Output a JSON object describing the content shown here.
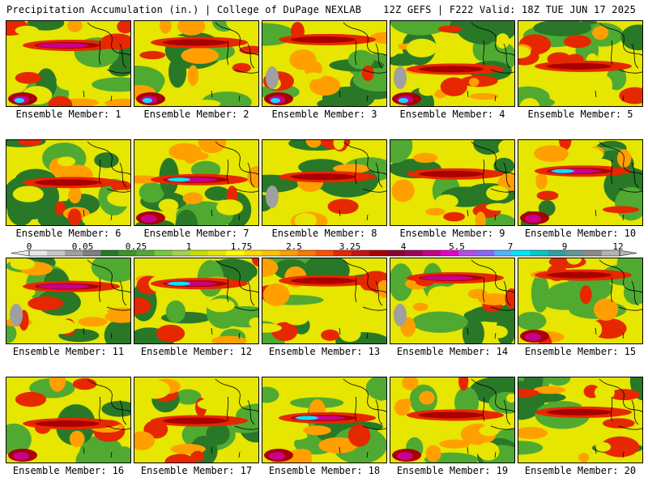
{
  "header": {
    "left": "Precipitation Accumulation (in.) | College of DuPage NEXLAB",
    "right": "12Z GEFS | F222 Valid: 18Z TUE JUN 17 2025"
  },
  "panel_label_prefix": "Ensemble Member: ",
  "members": [
    "1",
    "2",
    "3",
    "4",
    "5",
    "6",
    "7",
    "8",
    "9",
    "10",
    "11",
    "12",
    "13",
    "14",
    "15",
    "16",
    "17",
    "18",
    "19",
    "20"
  ],
  "colorbar": {
    "tick_labels": [
      "0",
      "0.05",
      "0.25",
      "1",
      "1.75",
      "2.5",
      "3.25",
      "4",
      "5.5",
      "7",
      "9",
      "12"
    ],
    "colors": [
      "#e8e8e8",
      "#c8c8c8",
      "#a0a0a0",
      "#808080",
      "#287828",
      "#3c9628",
      "#50aa32",
      "#78c83c",
      "#a0d250",
      "#c8dc00",
      "#e6e600",
      "#ffff00",
      "#ffdc00",
      "#ffc000",
      "#ffa000",
      "#ff7800",
      "#ff5000",
      "#e62800",
      "#c81414",
      "#aa0000",
      "#8c0032",
      "#a0005a",
      "#c8008c",
      "#e600c8",
      "#b450e6",
      "#8c64ff",
      "#50b4ff",
      "#00e6ff",
      "#00c8c8",
      "#32a0a0",
      "#649696",
      "#8c8c8c",
      "#b4b4b4"
    ]
  },
  "map_palette": {
    "dry_green": "#287828",
    "green": "#50aa32",
    "yellow": "#e6e600",
    "orange": "#ffa000",
    "red": "#e62800",
    "dark_red": "#aa0000",
    "magenta": "#c8008c",
    "cyan": "#00e6ff",
    "gray": "#a0a0a0"
  }
}
